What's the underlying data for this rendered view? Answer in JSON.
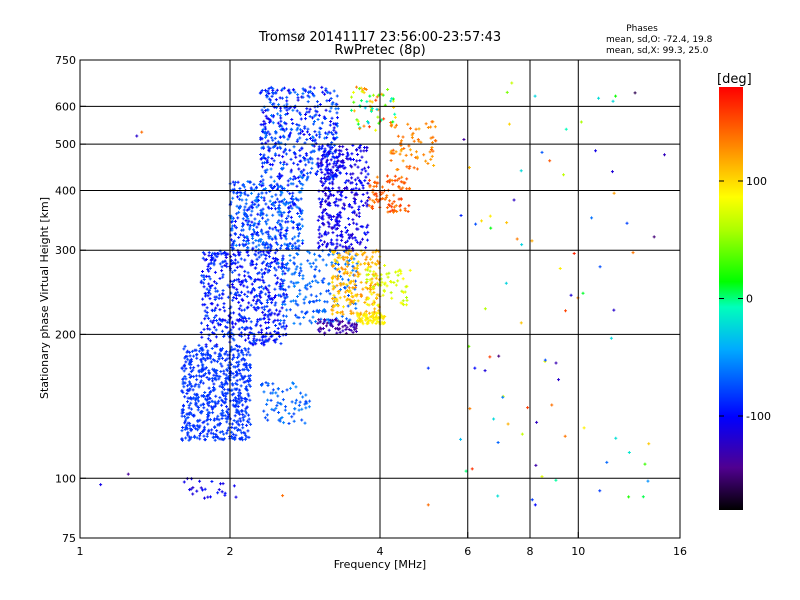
{
  "chart_data": {
    "type": "scatter",
    "title": "Tromsø 20141117 23:56:00-23:57:43",
    "subtitle": "RwPretec (8p)",
    "xlabel": "Frequency [MHz]",
    "ylabel": "Stationary phase Virtual Height [km]",
    "x_scale": "log",
    "y_scale": "log",
    "xlim": [
      1,
      16
    ],
    "ylim": [
      75,
      750
    ],
    "x_ticks": [
      "1",
      "2",
      "4",
      "6",
      "8",
      "10",
      "16"
    ],
    "y_ticks": [
      "75",
      "100",
      "200",
      "300",
      "400",
      "500",
      "600",
      "750"
    ],
    "x_tick_values": [
      1,
      2,
      4,
      6,
      8,
      10,
      16
    ],
    "y_tick_values": [
      75,
      100,
      200,
      300,
      400,
      500,
      600,
      750
    ],
    "x_grid": [
      2,
      4,
      6,
      8,
      10
    ],
    "y_grid": [
      100,
      200,
      300,
      400,
      500,
      600
    ],
    "grid": true,
    "stats": {
      "heading": "Phases",
      "line_o": "mean, sd,O: -72.4, 19.8",
      "line_x": "mean, sd,X:  99.3, 25.0"
    },
    "colorbar": {
      "label": "[deg]",
      "min": -180,
      "max": 180,
      "ticks": [
        "100",
        "0",
        "-100"
      ],
      "tick_values": [
        100,
        0,
        -100
      ]
    },
    "point_groups": [
      {
        "x": [
          1.6,
          2.2
        ],
        "y": [
          120,
          190
        ],
        "phase": [
          -90,
          -75
        ],
        "count": 650
      },
      {
        "x": [
          1.75,
          2.6
        ],
        "y": [
          190,
          300
        ],
        "phase": [
          -110,
          -75
        ],
        "count": 550
      },
      {
        "x": [
          2.0,
          2.8
        ],
        "y": [
          300,
          420
        ],
        "phase": [
          -100,
          -55
        ],
        "count": 400
      },
      {
        "x": [
          2.3,
          3.3
        ],
        "y": [
          420,
          660
        ],
        "phase": [
          -110,
          -60
        ],
        "count": 450
      },
      {
        "x": [
          2.3,
          2.9
        ],
        "y": [
          130,
          160
        ],
        "phase": [
          -80,
          -55
        ],
        "count": 70
      },
      {
        "x": [
          3.0,
          3.8
        ],
        "y": [
          300,
          500
        ],
        "phase": [
          -125,
          -90
        ],
        "count": 350
      },
      {
        "x": [
          2.5,
          3.6
        ],
        "y": [
          210,
          300
        ],
        "phase": [
          -80,
          -55
        ],
        "count": 200
      },
      {
        "x": [
          3.0,
          3.6
        ],
        "y": [
          200,
          215
        ],
        "phase": [
          -150,
          -120
        ],
        "count": 60
      },
      {
        "x": [
          3.2,
          4.0
        ],
        "y": [
          220,
          300
        ],
        "phase": [
          95,
          130
        ],
        "count": 220
      },
      {
        "x": [
          3.6,
          4.1
        ],
        "y": [
          210,
          222
        ],
        "phase": [
          85,
          100
        ],
        "count": 70
      },
      {
        "x": [
          3.8,
          4.6
        ],
        "y": [
          360,
          430
        ],
        "phase": [
          130,
          160
        ],
        "count": 90
      },
      {
        "x": [
          4.2,
          5.2
        ],
        "y": [
          440,
          560
        ],
        "phase": [
          115,
          145
        ],
        "count": 70
      },
      {
        "x": [
          3.7,
          4.6
        ],
        "y": [
          230,
          280
        ],
        "phase": [
          60,
          90
        ],
        "count": 60
      },
      {
        "x": [
          3.5,
          4.3
        ],
        "y": [
          530,
          660
        ],
        "phase": [
          -40,
          160
        ],
        "count": 60
      },
      {
        "x": [
          1.6,
          2.1
        ],
        "y": [
          90,
          100
        ],
        "phase": [
          -120,
          -90
        ],
        "count": 25
      },
      {
        "x": [
          5.8,
          15
        ],
        "y": [
          90,
          680
        ],
        "phase": [
          -150,
          170
        ],
        "count": 80
      }
    ],
    "outliers": [
      {
        "x": 1.3,
        "y": 520,
        "phase": -120
      },
      {
        "x": 1.33,
        "y": 530,
        "phase": 140
      },
      {
        "x": 1.1,
        "y": 97,
        "phase": -110
      },
      {
        "x": 1.25,
        "y": 102,
        "phase": -140
      },
      {
        "x": 6.2,
        "y": 170,
        "phase": -100
      },
      {
        "x": 6.5,
        "y": 168,
        "phase": -115
      },
      {
        "x": 5.0,
        "y": 170,
        "phase": -85
      },
      {
        "x": 14.2,
        "y": 320,
        "phase": -150
      },
      {
        "x": 13.0,
        "y": 640,
        "phase": -160
      },
      {
        "x": 8.2,
        "y": 88,
        "phase": -100
      },
      {
        "x": 5.0,
        "y": 88,
        "phase": 140
      },
      {
        "x": 2.55,
        "y": 92,
        "phase": 140
      }
    ]
  }
}
